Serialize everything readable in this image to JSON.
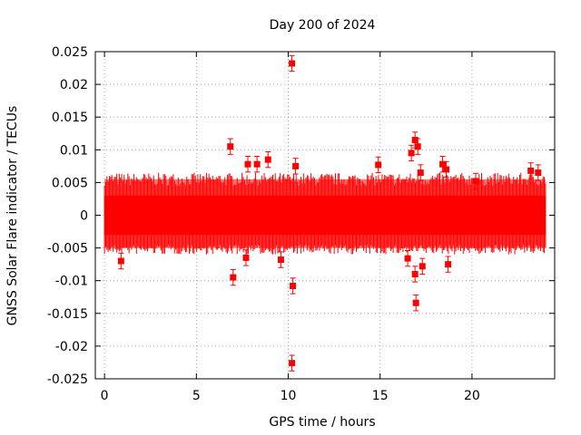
{
  "chart_data": {
    "type": "scatter",
    "title": "Day 200 of 2024",
    "xlabel": "GPS time / hours",
    "ylabel": "GNSS Solar Flare indicator / TECUs",
    "xlim": [
      -0.5,
      24.5
    ],
    "ylim": [
      -0.025,
      0.025
    ],
    "x_ticks": [
      0,
      5,
      10,
      15,
      20
    ],
    "x_tick_labels": [
      "0",
      "5",
      "10",
      "15",
      "20"
    ],
    "y_ticks": [
      -0.025,
      -0.02,
      -0.015,
      -0.01,
      -0.005,
      0,
      0.005,
      0.01,
      0.015,
      0.02,
      0.025
    ],
    "y_tick_labels": [
      "-0.025",
      "-0.02",
      "-0.015",
      "-0.01",
      "-0.005",
      "0",
      "0.005",
      "0.01",
      "0.015",
      "0.02",
      "0.025"
    ],
    "grid": true,
    "series_color": "#ff0000",
    "error_bar_half_width": 0.0012,
    "dense_band": {
      "x_range": [
        0,
        24
      ],
      "core_y": [
        -0.003,
        0.003
      ],
      "error_y": [
        -0.005,
        0.0055
      ]
    },
    "points": [
      {
        "x": 0.9,
        "y": -0.007
      },
      {
        "x": 6.85,
        "y": 0.0105
      },
      {
        "x": 7.0,
        "y": -0.0095
      },
      {
        "x": 7.7,
        "y": -0.0065
      },
      {
        "x": 7.8,
        "y": 0.0078
      },
      {
        "x": 8.3,
        "y": 0.0078
      },
      {
        "x": 8.9,
        "y": 0.0085
      },
      {
        "x": 9.6,
        "y": -0.0068
      },
      {
        "x": 10.2,
        "y": 0.0232
      },
      {
        "x": 10.25,
        "y": -0.0108
      },
      {
        "x": 10.2,
        "y": -0.0226
      },
      {
        "x": 10.4,
        "y": 0.0075
      },
      {
        "x": 14.9,
        "y": 0.0077
      },
      {
        "x": 16.7,
        "y": 0.0095
      },
      {
        "x": 16.9,
        "y": 0.0115
      },
      {
        "x": 17.05,
        "y": 0.0105
      },
      {
        "x": 16.9,
        "y": -0.009
      },
      {
        "x": 16.95,
        "y": -0.0134
      },
      {
        "x": 16.5,
        "y": -0.0066
      },
      {
        "x": 17.2,
        "y": 0.0065
      },
      {
        "x": 17.3,
        "y": -0.0078
      },
      {
        "x": 18.4,
        "y": 0.0078
      },
      {
        "x": 18.6,
        "y": 0.007
      },
      {
        "x": 18.7,
        "y": -0.0075
      },
      {
        "x": 20.2,
        "y": 0.0052
      },
      {
        "x": 23.2,
        "y": 0.0068
      },
      {
        "x": 23.6,
        "y": 0.0065
      }
    ]
  }
}
